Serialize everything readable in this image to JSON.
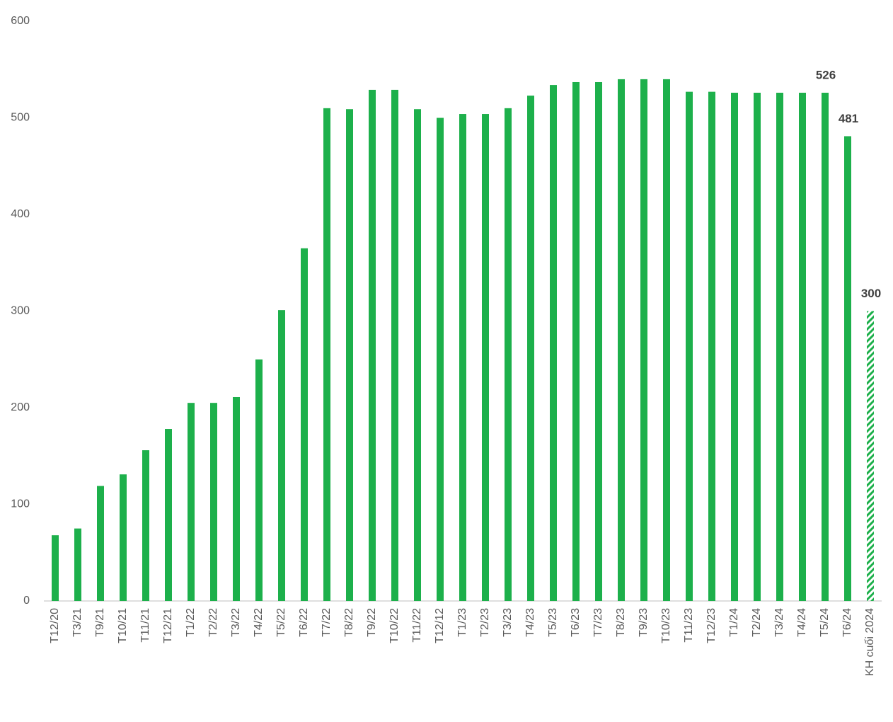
{
  "chart_data": {
    "type": "bar",
    "categories": [
      "T12/20",
      "T3/21",
      "T9/21",
      "T10/21",
      "T11/21",
      "T12/21",
      "T1/22",
      "T2/22",
      "T3/22",
      "T4/22",
      "T5/22",
      "T6/22",
      "T7/22",
      "T8/22",
      "T9/22",
      "T10/22",
      "T11/22",
      "T12/12",
      "T1/23",
      "T2/23",
      "T3/23",
      "T4/23",
      "T5/23",
      "T6/23",
      "T7/23",
      "T8/23",
      "T9/23",
      "T10/23",
      "T11/23",
      "T12/23",
      "T1/24",
      "T2/24",
      "T3/24",
      "T4/24",
      "T5/24",
      "T6/24",
      "KH cuối 2024"
    ],
    "values": [
      68,
      75,
      119,
      131,
      156,
      178,
      205,
      205,
      211,
      250,
      301,
      365,
      510,
      509,
      529,
      529,
      509,
      500,
      504,
      504,
      510,
      523,
      534,
      537,
      537,
      540,
      540,
      540,
      527,
      527,
      526,
      526,
      526,
      526,
      526,
      481,
      300
    ],
    "value_labels": [
      null,
      null,
      null,
      null,
      null,
      null,
      null,
      null,
      null,
      null,
      null,
      null,
      null,
      null,
      null,
      null,
      null,
      null,
      null,
      null,
      null,
      null,
      null,
      null,
      null,
      null,
      null,
      null,
      null,
      null,
      null,
      null,
      null,
      null,
      "526",
      "481",
      "300"
    ],
    "color": "#1db04b",
    "hatched_last": true,
    "ylim": [
      0,
      600
    ],
    "yticks": [
      0,
      100,
      200,
      300,
      400,
      500,
      600
    ],
    "grid": false
  }
}
